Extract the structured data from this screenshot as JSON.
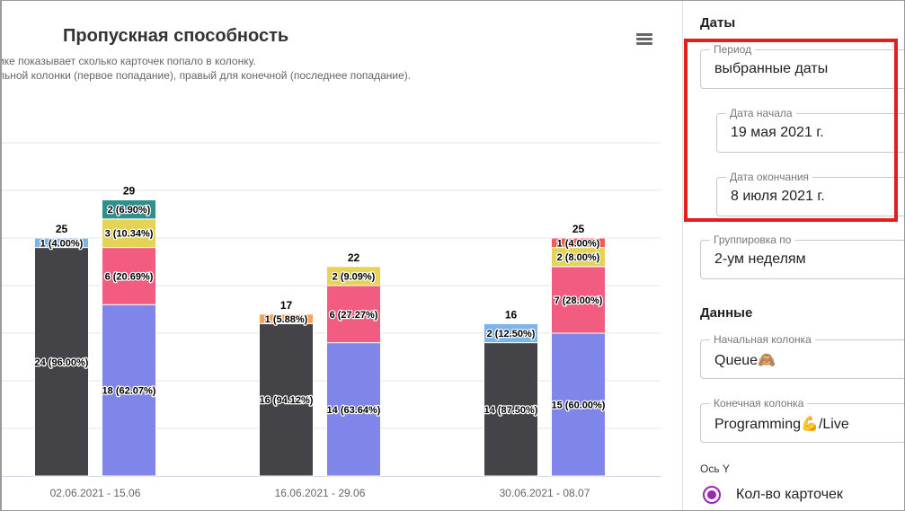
{
  "chart_data": {
    "type": "bar",
    "stacked": true,
    "title": "Пропускная способность",
    "subtitle_lines": [
      "ике показывает сколько карточек попало в колонку.",
      "льной колонки (первое попадание), правый для конечной (последнее попадание)."
    ],
    "ylim": [
      0,
      35
    ],
    "grid_step": 5,
    "grid": true,
    "categories": [
      "02.06.2021 - 15.06",
      "16.06.2021 - 29.06",
      "30.06.2021 - 08.07"
    ],
    "stacks": [
      [
        {
          "total": 25,
          "segments": [
            {
              "value": 24,
              "label": "24 (96.00%)",
              "color": "#434348"
            },
            {
              "value": 1,
              "label": "1 (4.00%)",
              "color": "#7cb5ec"
            }
          ]
        },
        {
          "total": 29,
          "segments": [
            {
              "value": 18,
              "label": "18 (62.07%)",
              "color": "#8085e9"
            },
            {
              "value": 6,
              "label": "6 (20.69%)",
              "color": "#f15c80"
            },
            {
              "value": 3,
              "label": "3 (10.34%)",
              "color": "#e4d354"
            },
            {
              "value": 2,
              "label": "2 (6.90%)",
              "color": "#2b908f"
            }
          ]
        }
      ],
      [
        {
          "total": 17,
          "segments": [
            {
              "value": 16,
              "label": "16 (94.12%)",
              "color": "#434348"
            },
            {
              "value": 1,
              "label": "1 (5.88%)",
              "color": "#f7a35c"
            }
          ]
        },
        {
          "total": 22,
          "segments": [
            {
              "value": 14,
              "label": "14 (63.64%)",
              "color": "#8085e9"
            },
            {
              "value": 6,
              "label": "6 (27.27%)",
              "color": "#f15c80"
            },
            {
              "value": 2,
              "label": "2 (9.09%)",
              "color": "#e4d354"
            }
          ]
        }
      ],
      [
        {
          "total": 16,
          "segments": [
            {
              "value": 14,
              "label": "14 (87.50%)",
              "color": "#434348"
            },
            {
              "value": 2,
              "label": "2 (12.50%)",
              "color": "#7cb5ec"
            }
          ]
        },
        {
          "total": 25,
          "segments": [
            {
              "value": 15,
              "label": "15 (60.00%)",
              "color": "#8085e9"
            },
            {
              "value": 7,
              "label": "7 (28.00%)",
              "color": "#f15c80"
            },
            {
              "value": 2,
              "label": "2 (8.00%)",
              "color": "#e4d354"
            },
            {
              "value": 1,
              "label": "1 (4.00%)",
              "color": "#f45b5b"
            }
          ]
        }
      ]
    ]
  },
  "sidebar": {
    "dates_title": "Даты",
    "period": {
      "label": "Период",
      "value": "выбранные даты"
    },
    "start_date": {
      "label": "Дата начала",
      "value": "19 мая 2021 г."
    },
    "end_date": {
      "label": "Дата окончания",
      "value": "8 июля 2021 г."
    },
    "grouping": {
      "label": "Группировка по",
      "value": "2-ум неделям"
    },
    "data_title": "Данные",
    "start_column": {
      "label": "Начальная колонка",
      "value": "Queue🙈"
    },
    "end_column": {
      "label": "Конечная колонка",
      "value": "Programming💪/Live"
    },
    "y_axis_label": "Ось Y",
    "y_axis_option": "Кол-во карточек"
  },
  "colors": {
    "highlight": "#e0201a",
    "radio": "#9c27b0"
  }
}
